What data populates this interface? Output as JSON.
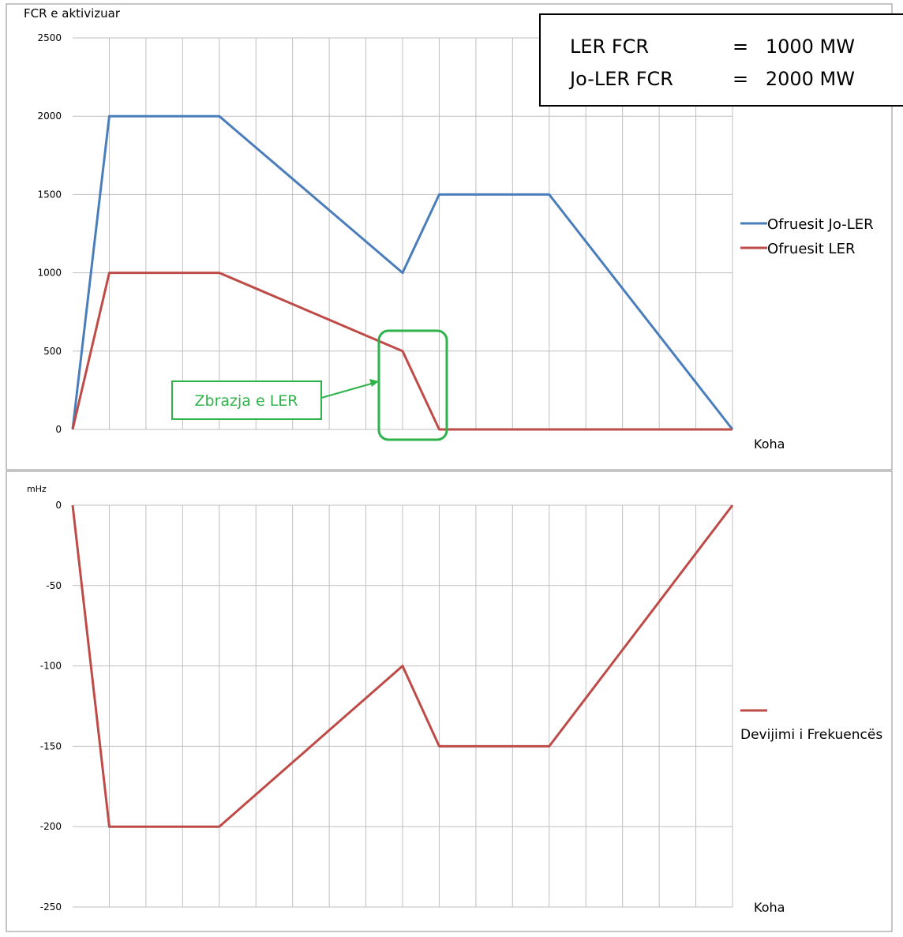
{
  "chart_data": [
    {
      "type": "line",
      "y_label": "FCR e aktivizuar",
      "x_label": "Koha",
      "categories": [
        null,
        null,
        null,
        null,
        null,
        null,
        null,
        null,
        null,
        null,
        null,
        null,
        null,
        null,
        null,
        null,
        null,
        null,
        null
      ],
      "series": [
        {
          "name": "Ofruesit Jo-LER",
          "color": "#4a7ebb",
          "values": [
            0,
            2000,
            2000,
            2000,
            2000,
            1800,
            1600,
            1400,
            1200,
            1000,
            1500,
            1500,
            1500,
            1500,
            1200,
            900,
            600,
            300,
            0
          ]
        },
        {
          "name": "Ofruesit LER",
          "color": "#be4b48",
          "values": [
            0,
            1000,
            1000,
            1000,
            1000,
            900,
            800,
            700,
            600,
            500,
            0,
            0,
            0,
            0,
            0,
            0,
            0,
            0,
            0
          ]
        }
      ],
      "ylim": [
        0,
        2500
      ],
      "yticks": [
        0,
        500,
        1000,
        1500,
        2000,
        2500
      ],
      "grid": true,
      "legend": "right",
      "info_box": [
        [
          "LER FCR",
          "=",
          "1000 MW"
        ],
        [
          "Jo-LER FCR",
          "=",
          "2000  MW"
        ]
      ],
      "annotation": "Zbrazja e LER"
    },
    {
      "type": "line",
      "y_label": "mHz",
      "x_label": "Koha",
      "categories": [
        null,
        null,
        null,
        null,
        null,
        null,
        null,
        null,
        null,
        null,
        null,
        null,
        null,
        null,
        null,
        null,
        null,
        null,
        null
      ],
      "series": [
        {
          "name": "Devijimi i Frekuencës",
          "color": "#be4b48",
          "values": [
            0,
            -200,
            -200,
            -200,
            -200,
            -180,
            -160,
            -140,
            -120,
            -100,
            -150,
            -150,
            -150,
            -150,
            -120,
            -90,
            -60,
            -30,
            0
          ]
        }
      ],
      "ylim": [
        -250,
        0
      ],
      "yticks": [
        -250,
        -200,
        -150,
        -100,
        -50,
        0
      ],
      "grid": true,
      "legend": "right"
    }
  ]
}
